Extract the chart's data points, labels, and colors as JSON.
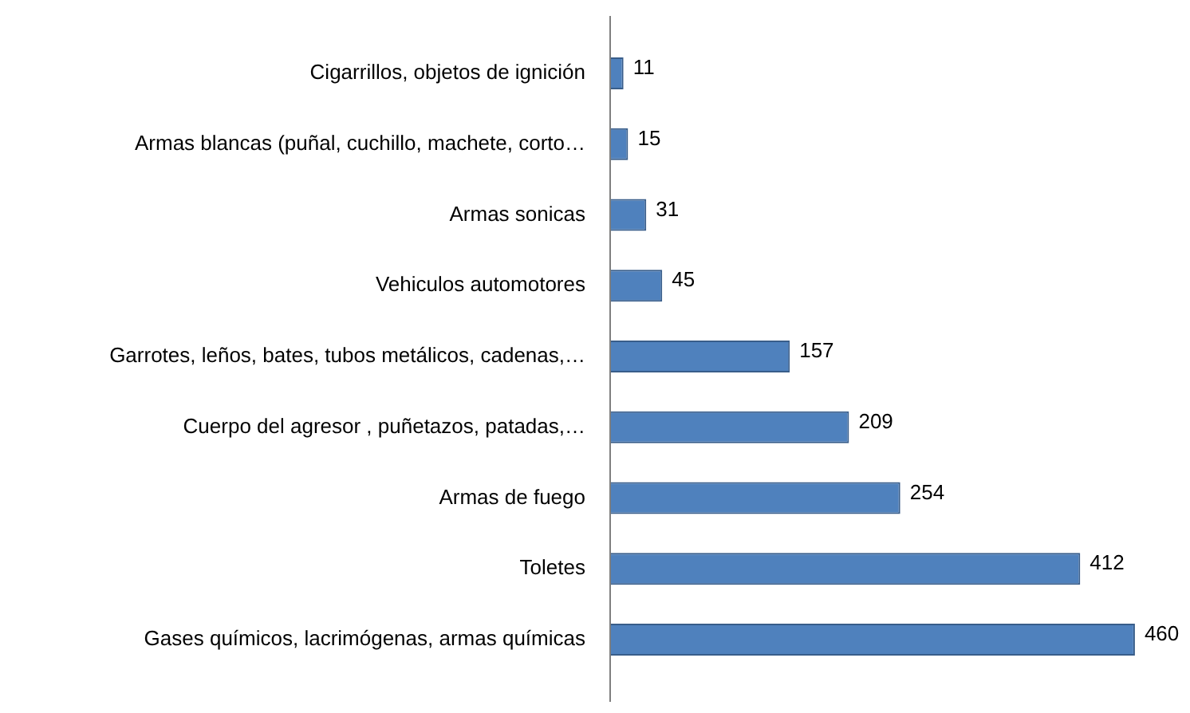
{
  "chart_data": {
    "type": "bar",
    "orientation": "horizontal",
    "categories": [
      "Cigarrillos, objetos de ignición",
      "Armas blancas (puñal, cuchillo, machete, corto…",
      "Armas sonicas",
      "Vehiculos automotores",
      "Garrotes, leños, bates, tubos metálicos, cadenas,…",
      "Cuerpo del agresor , puñetazos, patadas,…",
      "Armas de fuego",
      "Toletes",
      "Gases químicos, lacrimógenas, armas químicas"
    ],
    "values": [
      11,
      15,
      31,
      45,
      157,
      209,
      254,
      412,
      460
    ],
    "color": "#4f81bd",
    "tick_labels": "y",
    "data_labels": true,
    "grid": false,
    "legend": false
  }
}
